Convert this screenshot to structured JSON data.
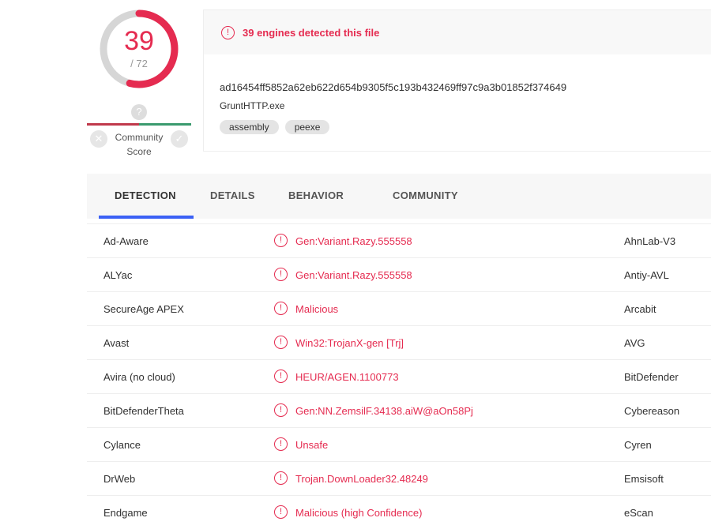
{
  "score": {
    "detected": "39",
    "total": "/ 72",
    "fraction": 0.5417,
    "color": "#e52b50"
  },
  "community": {
    "label": "Community Score",
    "question": "?",
    "negative": "✕",
    "positive": "✓"
  },
  "summary": {
    "alert": "39 engines detected this file",
    "hash": "ad16454ff5852a62eb622d654b9305f5c193b432469ff97c9a3b01852f374649",
    "filename": "GruntHTTP.exe",
    "tags": [
      "assembly",
      "peexe"
    ]
  },
  "tabs": [
    {
      "label": "DETECTION",
      "active": true
    },
    {
      "label": "DETAILS"
    },
    {
      "label": "BEHAVIOR"
    },
    {
      "label": "COMMUNITY"
    }
  ],
  "rows": [
    {
      "engine": "Ad-Aware",
      "result": "Gen:Variant.Razy.555558",
      "engine2": "AhnLab-V3"
    },
    {
      "engine": "ALYac",
      "result": "Gen:Variant.Razy.555558",
      "engine2": "Antiy-AVL"
    },
    {
      "engine": "SecureAge APEX",
      "result": "Malicious",
      "engine2": "Arcabit"
    },
    {
      "engine": "Avast",
      "result": "Win32:TrojanX-gen [Trj]",
      "engine2": "AVG"
    },
    {
      "engine": "Avira (no cloud)",
      "result": "HEUR/AGEN.1100773",
      "engine2": "BitDefender"
    },
    {
      "engine": "BitDefenderTheta",
      "result": "Gen:NN.ZemsilF.34138.aiW@aOn58Pj",
      "engine2": "Cybereason"
    },
    {
      "engine": "Cylance",
      "result": "Unsafe",
      "engine2": "Cyren"
    },
    {
      "engine": "DrWeb",
      "result": "Trojan.DownLoader32.48249",
      "engine2": "Emsisoft"
    },
    {
      "engine": "Endgame",
      "result": "Malicious (high Confidence)",
      "engine2": "eScan"
    }
  ]
}
